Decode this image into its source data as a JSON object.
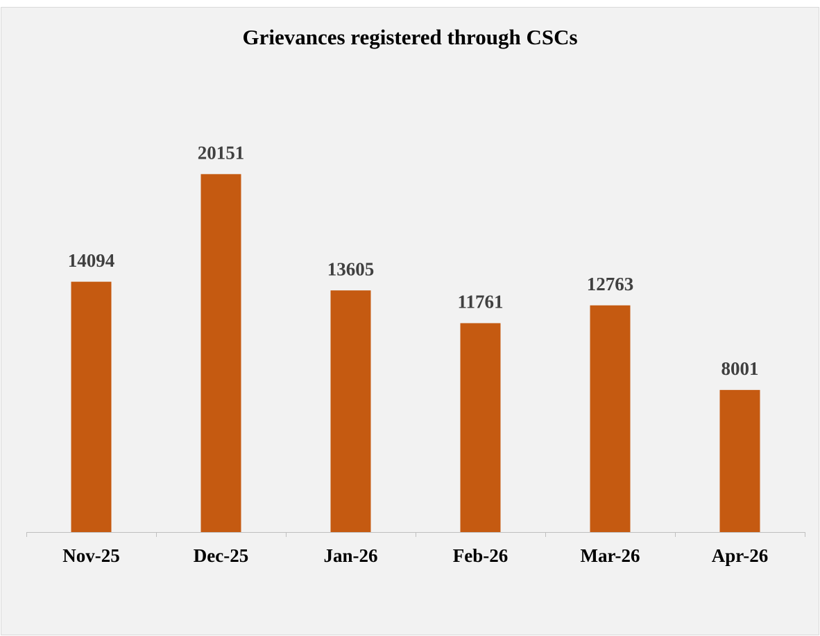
{
  "chart_data": {
    "type": "bar",
    "title": "Grievances registered through CSCs",
    "categories": [
      "Nov-25",
      "Dec-25",
      "Jan-26",
      "Feb-26",
      "Mar-26",
      "Apr-26"
    ],
    "values": [
      14094,
      20151,
      13605,
      11761,
      12763,
      8001
    ],
    "color": "#c55a11",
    "ylim": [
      0,
      25000
    ]
  }
}
